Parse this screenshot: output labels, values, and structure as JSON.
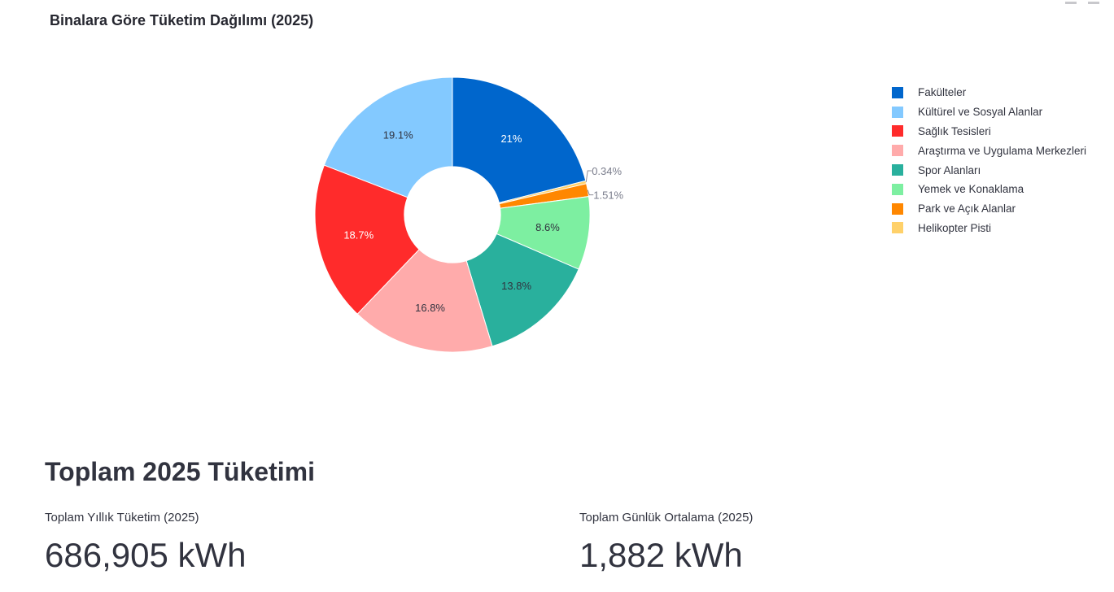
{
  "chart_data": {
    "type": "pie",
    "title": "Binalara Göre Tüketim Dağılımı (2025)",
    "hole": 0.35,
    "direction": "clockwise",
    "legend_position": "right",
    "slices": [
      {
        "label": "Fakülteler",
        "value": 21,
        "text": "21%",
        "color": "#0066cc"
      },
      {
        "label": "Helikopter Pisti",
        "value": 0.34,
        "text": "0.34%",
        "color": "#ffd16a"
      },
      {
        "label": "Park ve Açık Alanlar",
        "value": 1.51,
        "text": "1.51%",
        "color": "#ff8700"
      },
      {
        "label": "Yemek ve Konaklama",
        "value": 8.6,
        "text": "8.6%",
        "color": "#7defa1"
      },
      {
        "label": "Spor Alanları",
        "value": 13.8,
        "text": "13.8%",
        "color": "#29b09d"
      },
      {
        "label": "Araştırma ve Uygulama Merkezleri",
        "value": 16.8,
        "text": "16.8%",
        "color": "#ffabab"
      },
      {
        "label": "Sağlık Tesisleri",
        "value": 18.7,
        "text": "18.7%",
        "color": "#ff2b2b"
      },
      {
        "label": "Kültürel ve Sosyal Alanlar",
        "value": 19.1,
        "text": "19.1%",
        "color": "#83c9ff"
      }
    ],
    "legend": [
      {
        "label": "Fakülteler",
        "color": "#0066cc"
      },
      {
        "label": "Kültürel ve Sosyal Alanlar",
        "color": "#83c9ff"
      },
      {
        "label": "Sağlık Tesisleri",
        "color": "#ff2b2b"
      },
      {
        "label": "Araştırma ve Uygulama Merkezleri",
        "color": "#ffabab"
      },
      {
        "label": "Spor Alanları",
        "color": "#29b09d"
      },
      {
        "label": "Yemek ve Konaklama",
        "color": "#7defa1"
      },
      {
        "label": "Park ve Açık Alanlar",
        "color": "#ff8700"
      },
      {
        "label": "Helikopter Pisti",
        "color": "#ffd16a"
      }
    ]
  },
  "summary": {
    "heading": "Toplam 2025 Tüketimi",
    "annual_label": "Toplam Yıllık Tüketim (2025)",
    "annual_value": "686,905 kWh",
    "daily_label": "Toplam Günlük Ortalama (2025)",
    "daily_value": "1,882 kWh"
  }
}
